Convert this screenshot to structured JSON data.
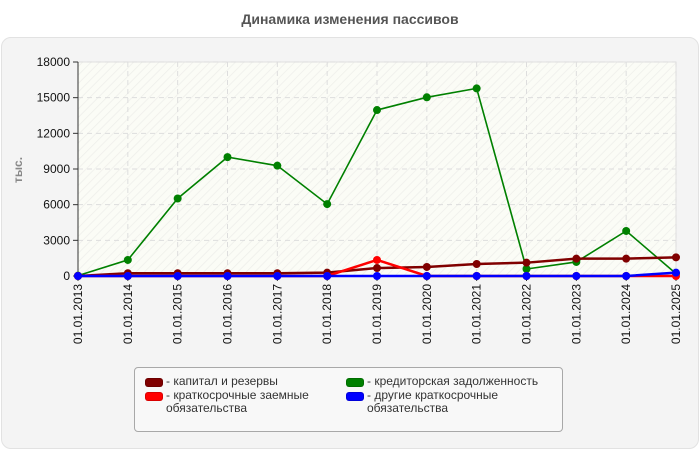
{
  "title": "Динамика изменения пассивов",
  "chart_data": {
    "type": "line",
    "title": "Динамика изменения пассивов",
    "xlabel": "",
    "ylabel": "тыс.",
    "ylim": [
      0,
      18000
    ],
    "yticks": [
      0,
      3000,
      6000,
      9000,
      12000,
      15000,
      18000
    ],
    "grid": true,
    "legend_position": "bottom",
    "categories": [
      "01.01.2013",
      "01.01.2014",
      "01.01.2015",
      "01.01.2016",
      "01.01.2017",
      "01.01.2018",
      "01.01.2019",
      "01.01.2020",
      "01.01.2021",
      "01.01.2022",
      "01.01.2023",
      "01.01.2024",
      "01.01.2025"
    ],
    "series": [
      {
        "name": "капитал и резервы",
        "color": "#800000",
        "values": [
          0,
          230,
          230,
          230,
          230,
          280,
          670,
          760,
          1010,
          1120,
          1460,
          1460,
          1570
        ]
      },
      {
        "name": "кредиторская задолженность",
        "color": "#008000",
        "values": [
          30,
          1350,
          6520,
          10000,
          9280,
          6050,
          13960,
          15030,
          15780,
          590,
          1180,
          3790,
          200
        ]
      },
      {
        "name": "краткосрочные заемные обязательства",
        "color": "#ff0000",
        "values": [
          0,
          0,
          0,
          0,
          0,
          0,
          1350,
          0,
          0,
          0,
          0,
          0,
          0
        ]
      },
      {
        "name": "другие краткосрочные обязательства",
        "color": "#0000ff",
        "values": [
          0,
          0,
          0,
          0,
          0,
          0,
          0,
          0,
          0,
          0,
          0,
          0,
          280
        ]
      }
    ]
  },
  "legend": {
    "items": [
      {
        "label": "- капитал и резервы",
        "color": "#800000"
      },
      {
        "label": "- кредиторская задолженность",
        "color": "#008000"
      },
      {
        "label": "- краткосрочные заемные\nобязательства",
        "color": "#ff0000"
      },
      {
        "label": "- другие краткосрочные\nобязательства",
        "color": "#0000ff"
      }
    ]
  }
}
